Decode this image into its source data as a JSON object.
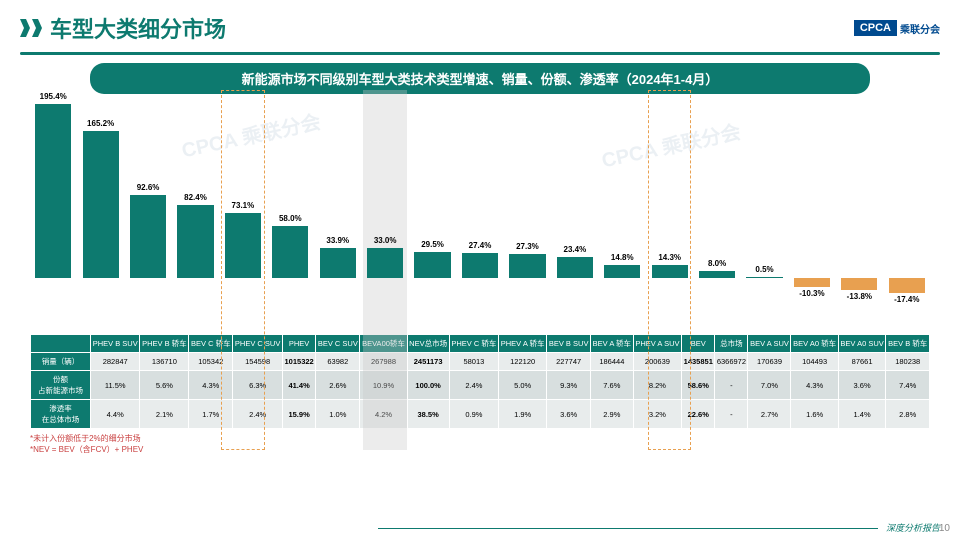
{
  "header": {
    "title": "车型大类细分市场",
    "logo_en": "CPCA",
    "logo_cn": "乘联分会"
  },
  "subtitle": "新能源市场不同级别车型大类技术类型增速、销量、份额、渗透率（2024年1-4月）",
  "chart": {
    "max": 200,
    "min": -25,
    "color_bar": "#0d7a6f",
    "color_neg": "#e8a050",
    "annotate_color": "#333",
    "categories": [
      "PHEV B SUV",
      "PHEV B 轿车",
      "BEV C 轿车",
      "PHEV C SUV",
      "PHEV",
      "BEV C SUV",
      "BEVA00轿车",
      "NEV总市场",
      "PHEV C 轿车",
      "PHEV A 轿车",
      "BEV B SUV",
      "BEV A 轿车",
      "PHEV A SUV",
      "BEV",
      "总市场",
      "BEV A SUV",
      "BEV A0 轿车",
      "BEV A0 SUV",
      "BEV B 轿车"
    ],
    "values": [
      195.4,
      165.2,
      92.6,
      82.4,
      73.1,
      58.0,
      33.9,
      33.0,
      29.5,
      27.4,
      27.3,
      23.4,
      14.8,
      14.3,
      8.0,
      0.5,
      -10.3,
      -13.8,
      -17.4
    ],
    "highlights": [
      4,
      7,
      13
    ]
  },
  "table": {
    "row_headers": [
      "销量（辆）",
      "份额\n占新能源市场",
      "渗透率\n在总体市场"
    ],
    "rows": [
      [
        "282847",
        "136710",
        "105342",
        "154598",
        "1015322",
        "63982",
        "267988",
        "2451173",
        "58013",
        "122120",
        "227747",
        "186444",
        "200639",
        "1435851",
        "6366972",
        "170639",
        "104493",
        "87661",
        "180238"
      ],
      [
        "11.5%",
        "5.6%",
        "4.3%",
        "6.3%",
        "41.4%",
        "2.6%",
        "10.9%",
        "100.0%",
        "2.4%",
        "5.0%",
        "9.3%",
        "7.6%",
        "8.2%",
        "58.6%",
        "-",
        "7.0%",
        "4.3%",
        "3.6%",
        "7.4%"
      ],
      [
        "4.4%",
        "2.1%",
        "1.7%",
        "2.4%",
        "15.9%",
        "1.0%",
        "4.2%",
        "38.5%",
        "0.9%",
        "1.9%",
        "3.6%",
        "2.9%",
        "3.2%",
        "22.6%",
        "-",
        "2.7%",
        "1.6%",
        "1.4%",
        "2.8%"
      ]
    ]
  },
  "notes": [
    "*未计入份额低于2%的细分市场",
    "*NEV = BEV（含FCV）+ PHEV"
  ],
  "footer": "深度分析报告",
  "page": "10",
  "watermarks": [
    "CPCA 乘联分会",
    "CPCA 乘联分会"
  ]
}
